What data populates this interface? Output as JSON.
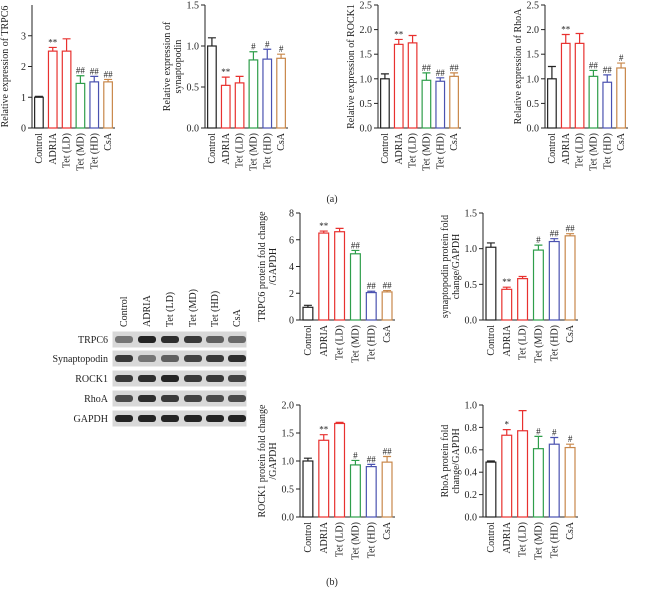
{
  "panel_labels": [
    "(a)",
    "(b)"
  ],
  "blot": {
    "lanes": [
      "Control",
      "ADRIA",
      "Tet (LD)",
      "Tet (MD)",
      "Tet (HD)",
      "CsA"
    ],
    "rows": [
      "TRPC6",
      "Synaptopodin",
      "ROCK1",
      "RhoA",
      "GAPDH"
    ]
  },
  "chart_data": [
    {
      "type": "bar",
      "ylabel": [
        "Relative expression of TRPC6"
      ],
      "categories": [
        "Control",
        "ADRIA",
        "Tet (LD)",
        "Tet (MD)",
        "Tet (HD)",
        "CsA"
      ],
      "values": [
        1.0,
        2.5,
        2.5,
        1.45,
        1.5,
        1.5
      ],
      "errors": [
        0.03,
        0.12,
        0.4,
        0.25,
        0.18,
        0.08
      ],
      "annotations": [
        null,
        "**",
        null,
        "##",
        "##",
        "##"
      ],
      "colors": [
        "#222222",
        "#e8312f",
        "#e8312f",
        "#2e9e4a",
        "#4a52b0",
        "#c8874a"
      ],
      "ylim": [
        0,
        4
      ],
      "yticks": [
        0,
        1,
        2,
        3
      ]
    },
    {
      "type": "bar",
      "ylabel": [
        "Relative expression of",
        "synaptopodin"
      ],
      "categories": [
        "Control",
        "ADRIA",
        "Tet (LD)",
        "Tet (MD)",
        "Tet (HD)",
        "CsA"
      ],
      "values": [
        1.0,
        0.52,
        0.55,
        0.83,
        0.84,
        0.85
      ],
      "errors": [
        0.1,
        0.1,
        0.08,
        0.1,
        0.12,
        0.05
      ],
      "annotations": [
        null,
        "**",
        null,
        "#",
        "#",
        "#"
      ],
      "colors": [
        "#222222",
        "#e8312f",
        "#e8312f",
        "#2e9e4a",
        "#4a52b0",
        "#c8874a"
      ],
      "ylim": [
        0,
        1.5
      ],
      "yticks": [
        {
          "value": 0,
          "label": "0.0"
        },
        0.5,
        {
          "value": 1,
          "label": "1.0"
        },
        1.5
      ]
    },
    {
      "type": "bar",
      "ylabel": [
        "Relative expression of ROCK1"
      ],
      "categories": [
        "Control",
        "ADRIA",
        "Tet (LD)",
        "Tet (MD)",
        "Tet (HD)",
        "CsA"
      ],
      "values": [
        1.0,
        1.7,
        1.73,
        0.97,
        0.95,
        1.05
      ],
      "errors": [
        0.1,
        0.1,
        0.15,
        0.15,
        0.07,
        0.07
      ],
      "annotations": [
        null,
        "**",
        null,
        "##",
        "##",
        "##"
      ],
      "colors": [
        "#222222",
        "#e8312f",
        "#e8312f",
        "#2e9e4a",
        "#4a52b0",
        "#c8874a"
      ],
      "ylim": [
        0,
        2.5
      ],
      "yticks": [
        {
          "value": 0,
          "label": "0.0"
        },
        0.5,
        {
          "value": 1,
          "label": "1.0"
        },
        1.5,
        {
          "value": 2,
          "label": "2.0"
        },
        2.5
      ]
    },
    {
      "type": "bar",
      "ylabel": [
        "Relative expression of RhoA"
      ],
      "categories": [
        "Control",
        "ADRIA",
        "Tet (LD)",
        "Tet (MD)",
        "Tet (HD)",
        "CsA"
      ],
      "values": [
        1.0,
        1.72,
        1.72,
        1.05,
        0.93,
        1.22
      ],
      "errors": [
        0.25,
        0.18,
        0.2,
        0.12,
        0.15,
        0.1
      ],
      "annotations": [
        null,
        "**",
        null,
        "##",
        "##",
        "#"
      ],
      "colors": [
        "#222222",
        "#e8312f",
        "#e8312f",
        "#2e9e4a",
        "#4a52b0",
        "#c8874a"
      ],
      "ylim": [
        0,
        2.5
      ],
      "yticks": [
        {
          "value": 0,
          "label": "0.0"
        },
        0.5,
        {
          "value": 1,
          "label": "1.0"
        },
        1.5,
        {
          "value": 2,
          "label": "2.0"
        },
        2.5
      ]
    },
    {
      "type": "bar",
      "ylabel": [
        "TRPC6 protein fold change",
        "/GAPDH"
      ],
      "categories": [
        "Control",
        "ADRIA",
        "Tet (LD)",
        "Tet (MD)",
        "Tet (HD)",
        "CsA"
      ],
      "values": [
        0.95,
        6.5,
        6.6,
        4.95,
        2.05,
        2.1
      ],
      "errors": [
        0.15,
        0.15,
        0.25,
        0.25,
        0.1,
        0.1
      ],
      "annotations": [
        null,
        "**",
        null,
        "##",
        "##",
        "##"
      ],
      "colors": [
        "#222222",
        "#e8312f",
        "#e8312f",
        "#2e9e4a",
        "#4a52b0",
        "#c8874a"
      ],
      "ylim": [
        0,
        8
      ],
      "yticks": [
        0,
        2,
        4,
        6,
        8
      ]
    },
    {
      "type": "bar",
      "ylabel": [
        "synaptopodin protein fold",
        "change/GAPDH"
      ],
      "categories": [
        "Control",
        "ADRIA",
        "Tet (LD)",
        "Tet (MD)",
        "Tet (HD)",
        "CsA"
      ],
      "values": [
        1.02,
        0.43,
        0.58,
        0.98,
        1.1,
        1.18
      ],
      "errors": [
        0.06,
        0.03,
        0.03,
        0.07,
        0.04,
        0.03
      ],
      "annotations": [
        null,
        "**",
        null,
        "#",
        "##",
        "##"
      ],
      "colors": [
        "#222222",
        "#e8312f",
        "#e8312f",
        "#2e9e4a",
        "#4a52b0",
        "#c8874a"
      ],
      "ylim": [
        0,
        1.5
      ],
      "yticks": [
        {
          "value": 0,
          "label": "0.0"
        },
        0.5,
        {
          "value": 1,
          "label": "1.0"
        },
        1.5
      ]
    },
    {
      "type": "bar",
      "ylabel": [
        "ROCK1 protein fold change",
        "/GAPDH"
      ],
      "categories": [
        "Control",
        "ADRIA",
        "Tet (LD)",
        "Tet (MD)",
        "Tet (HD)",
        "CsA"
      ],
      "values": [
        1.0,
        1.37,
        1.67,
        0.93,
        0.9,
        0.98
      ],
      "errors": [
        0.05,
        0.1,
        0.02,
        0.08,
        0.04,
        0.1
      ],
      "annotations": [
        null,
        "**",
        null,
        "#",
        "##",
        "##"
      ],
      "colors": [
        "#222222",
        "#e8312f",
        "#e8312f",
        "#2e9e4a",
        "#4a52b0",
        "#c8874a"
      ],
      "ylim": [
        0,
        2
      ],
      "yticks": [
        {
          "value": 0,
          "label": "0.0"
        },
        0.5,
        {
          "value": 1,
          "label": "1.0"
        },
        1.5,
        {
          "value": 2,
          "label": "2.0"
        }
      ]
    },
    {
      "type": "bar",
      "ylabel": [
        "RhoA protein fold",
        "change/GAPDH"
      ],
      "categories": [
        "Control",
        "ADRIA",
        "Tet (LD)",
        "Tet (MD)",
        "Tet (HD)",
        "CsA"
      ],
      "values": [
        0.49,
        0.73,
        0.77,
        0.61,
        0.65,
        0.62
      ],
      "errors": [
        0.01,
        0.05,
        0.18,
        0.11,
        0.06,
        0.03
      ],
      "annotations": [
        null,
        "*",
        null,
        "#",
        "#",
        "#"
      ],
      "colors": [
        "#222222",
        "#e8312f",
        "#e8312f",
        "#2e9e4a",
        "#4a52b0",
        "#c8874a"
      ],
      "ylim": [
        0,
        1
      ],
      "yticks": [
        {
          "value": 0,
          "label": "0.0"
        },
        0.2,
        0.4,
        0.6,
        0.8,
        {
          "value": 1,
          "label": "1.0"
        }
      ]
    }
  ]
}
